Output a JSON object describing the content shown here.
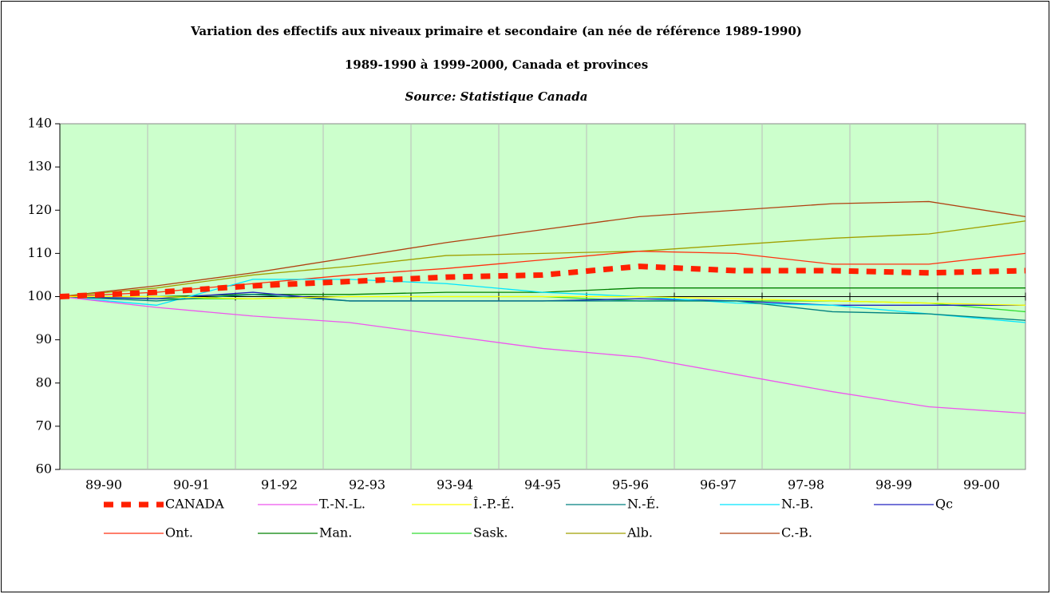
{
  "chart_data": {
    "type": "line",
    "title": "Variation des effectifs aux niveaux primaire et secondaire (an née de référence 1989-1990)",
    "subtitle": "1989-1990 à 1999-2000, Canada et provinces",
    "source": "Source: Statistique Canada",
    "categories": [
      "89-90",
      "90-91",
      "91-92",
      "92-93",
      "93-94",
      "94-95",
      "95-96",
      "96-97",
      "97-98",
      "98-99",
      "99-00"
    ],
    "ylim": [
      60,
      140
    ],
    "yticks": [
      60,
      70,
      80,
      90,
      100,
      110,
      120,
      130,
      140
    ],
    "x_axis_crosses": 100,
    "background": "#ccffcc",
    "series": [
      {
        "name": "CANADA",
        "color": "#ff2000",
        "dashed": true,
        "values": [
          100,
          101,
          102.5,
          103.5,
          104.5,
          105,
          107,
          106,
          106,
          105.5,
          106
        ]
      },
      {
        "name": "T.-N.-L.",
        "color": "#ee55ee",
        "values": [
          100,
          97.5,
          95.5,
          94,
          91,
          88,
          86,
          82,
          78,
          74.5,
          73
        ]
      },
      {
        "name": "Î.-P.-É.",
        "color": "#ffff00",
        "values": [
          100,
          100,
          99.5,
          100,
          100,
          100,
          100,
          99.5,
          99,
          98.5,
          98
        ]
      },
      {
        "name": "N.-É.",
        "color": "#008080",
        "values": [
          100,
          99,
          100.5,
          99,
          99,
          99,
          99,
          99,
          96.5,
          96,
          94.5
        ]
      },
      {
        "name": "N.-B.",
        "color": "#00e5ff",
        "values": [
          100,
          98,
          104,
          104,
          103,
          101,
          100,
          98.5,
          98,
          96,
          94
        ]
      },
      {
        "name": "Qc",
        "color": "#2020c0",
        "values": [
          100,
          99.5,
          101,
          99,
          99,
          99,
          99.5,
          99,
          98,
          98,
          98
        ]
      },
      {
        "name": "Ont.",
        "color": "#ff3010",
        "values": [
          100,
          101,
          103,
          105,
          106.5,
          108.5,
          110.5,
          110,
          107.5,
          107.5,
          110
        ]
      },
      {
        "name": "Man.",
        "color": "#008000",
        "values": [
          100,
          100,
          100.5,
          100.5,
          101,
          101,
          102,
          102,
          102,
          102,
          102
        ]
      },
      {
        "name": "Sask.",
        "color": "#33dd33",
        "values": [
          100,
          99.5,
          99.5,
          100,
          100,
          100,
          99,
          99,
          99,
          98.5,
          96.5
        ]
      },
      {
        "name": "Alb.",
        "color": "#a0a000",
        "values": [
          100,
          102,
          105,
          107,
          109.5,
          110,
          110.5,
          112,
          113.5,
          114.5,
          117.5
        ]
      },
      {
        "name": "C.-B.",
        "color": "#b04010",
        "values": [
          100,
          102.5,
          105.5,
          109,
          112.5,
          115.5,
          118.5,
          120,
          121.5,
          122,
          118.5
        ]
      }
    ]
  }
}
